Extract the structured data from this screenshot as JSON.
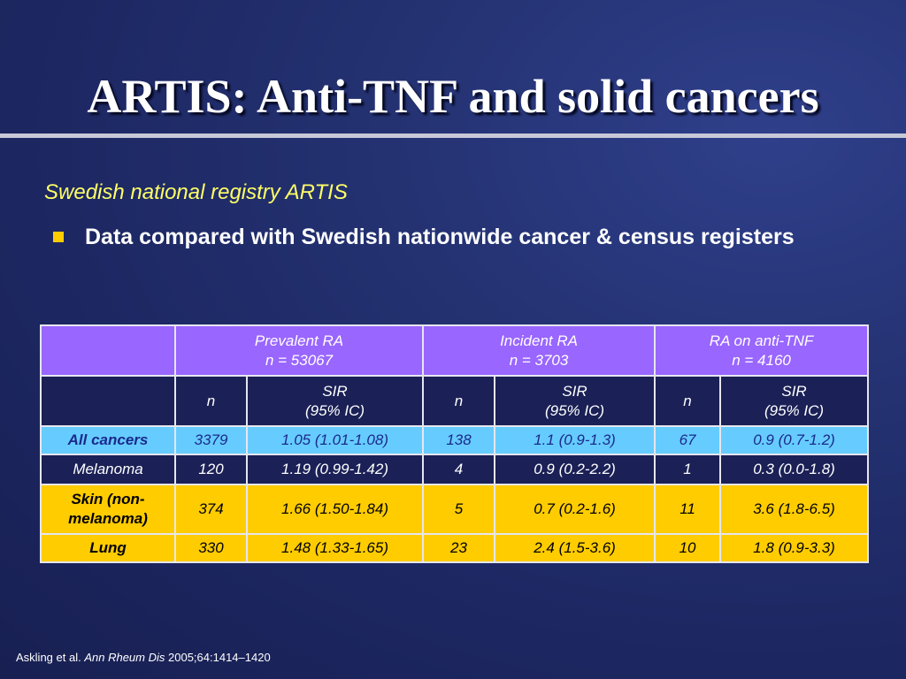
{
  "slide": {
    "title": "ARTIS: Anti-TNF and solid cancers",
    "subtitle": "Swedish national registry ARTIS",
    "bullet": "Data compared with Swedish nationwide cancer & census registers"
  },
  "table": {
    "groups": [
      {
        "name": "Prevalent RA",
        "size": "n = 53067"
      },
      {
        "name": "Incident RA",
        "size": "n = 3703"
      },
      {
        "name": "RA on anti-TNF",
        "size": "n = 4160"
      }
    ],
    "subheaders": {
      "n": "n",
      "sir_line1": "SIR",
      "sir_line2": "(95% IC)"
    },
    "rows": [
      {
        "label": "All cancers",
        "cells": [
          "3379",
          "1.05 (1.01-1.08)",
          "138",
          "1.1 (0.9-1.3)",
          "67",
          "0.9 (0.7-1.2)"
        ]
      },
      {
        "label": "Melanoma",
        "cells": [
          "120",
          "1.19 (0.99-1.42)",
          "4",
          "0.9 (0.2-2.2)",
          "1",
          "0.3 (0.0-1.8)"
        ]
      },
      {
        "label_line1": "Skin (non-",
        "label_line2": "melanoma)",
        "cells": [
          "374",
          "1.66 (1.50-1.84)",
          "5",
          "0.7 (0.2-1.6)",
          "11",
          "3.6 (1.8-6.5)"
        ]
      },
      {
        "label": "Lung",
        "cells": [
          "330",
          "1.48 (1.33-1.65)",
          "23",
          "2.4 (1.5-3.6)",
          "10",
          "1.8  (0.9-3.3)"
        ]
      }
    ]
  },
  "footnote": {
    "authors": "Askling et al.",
    "journal": "Ann Rheum Dis",
    "citation": "2005;64:1414–1420"
  },
  "colors": {
    "background": "#1c2660",
    "header_purple": "#9966ff",
    "all_cancers_row": "#66ccff",
    "highlight_yellow": "#ffcc00",
    "subtitle_yellow": "#ffff66"
  }
}
